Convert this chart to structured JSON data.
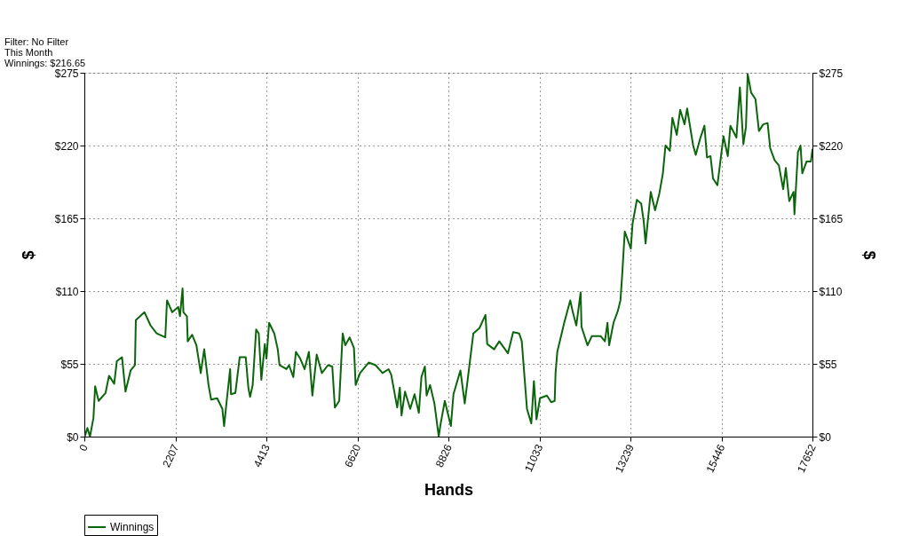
{
  "chart_data": {
    "type": "line",
    "xlabel": "Hands",
    "ylabel": "$",
    "y2label": "$",
    "annotations": [
      "Filter: No Filter",
      "This Month",
      "Winnings: $216.65"
    ],
    "x": [
      10,
      73,
      136,
      220,
      262,
      346,
      514,
      598,
      724,
      787,
      913,
      997,
      1122,
      1227,
      1248,
      1458,
      1605,
      1752,
      1962,
      2004,
      2130,
      2276,
      2318,
      2381,
      2402,
      2486,
      2507,
      2612,
      2717,
      2822,
      2906,
      3011,
      3074,
      3220,
      3346,
      3388,
      3451,
      3535,
      3556,
      3661,
      3766,
      3913,
      3976,
      4018,
      4081,
      4165,
      4228,
      4291,
      4375,
      4416,
      4479,
      4605,
      4689,
      4731,
      4899,
      4962,
      5066,
      5129,
      5234,
      5339,
      5444,
      5528,
      5633,
      5759,
      5906,
      6011,
      6074,
      6179,
      6263,
      6326,
      6431,
      6536,
      6578,
      6683,
      6893,
      7061,
      7229,
      7375,
      7438,
      7585,
      7648,
      7690,
      7774,
      7900,
      8005,
      8110,
      8172,
      8256,
      8298,
      8382,
      8487,
      8592,
      8634,
      8739,
      8886,
      8949,
      9117,
      9222,
      9305,
      9431,
      9578,
      9725,
      9767,
      9934,
      10060,
      10270,
      10396,
      10542,
      10605,
      10731,
      10836,
      10899,
      10962,
      11046,
      11214,
      11319,
      11403,
      11424,
      11466,
      11634,
      11780,
      11843,
      11927,
      12032,
      12053,
      12200,
      12305,
      12515,
      12620,
      12682,
      12724,
      12829,
      12934,
      12997,
      13039,
      13102,
      13249,
      13291,
      13396,
      13501,
      13564,
      13606,
      13732,
      13837,
      13942,
      14026,
      14089,
      14194,
      14257,
      14362,
      14446,
      14551,
      14614,
      14760,
      14823,
      14928,
      15033,
      15096,
      15180,
      15243,
      15348,
      15495,
      15600,
      15663,
      15809,
      15893,
      15977,
      16040,
      16082,
      16166,
      16271,
      16355,
      16460,
      16565,
      16628,
      16733,
      16838,
      16943,
      17006,
      17090,
      17195,
      17216,
      17300,
      17363,
      17405,
      17510,
      17615,
      17652
    ],
    "series": [
      {
        "name": "Winnings",
        "color": "#0b660b",
        "values": [
          0,
          6.5,
          0,
          14,
          38,
          27,
          33,
          46,
          40,
          57,
          60,
          34,
          50,
          54,
          88,
          94,
          84,
          78,
          75,
          103,
          94,
          98,
          91,
          112,
          94,
          91,
          72,
          77,
          69,
          48,
          66,
          39,
          28,
          29,
          21,
          8,
          27,
          51,
          32,
          33,
          60,
          60,
          37,
          30,
          39,
          81,
          78,
          43,
          70,
          59,
          86,
          78,
          66,
          54,
          51,
          54,
          45,
          64,
          59,
          51,
          64,
          31,
          62,
          48,
          54,
          53,
          22,
          27,
          78,
          69,
          75,
          67,
          39,
          48,
          56,
          54,
          48,
          51,
          47,
          22,
          37,
          16,
          34,
          21,
          32,
          18,
          45,
          53,
          31,
          39,
          25,
          0,
          9,
          27,
          8,
          32,
          50,
          25,
          46,
          78,
          82,
          92,
          70,
          66,
          72,
          63,
          79,
          78,
          72,
          21,
          10,
          42,
          13,
          29,
          31,
          26,
          27,
          48,
          64,
          86,
          103,
          94,
          84,
          109,
          83,
          69,
          76,
          76,
          72,
          86,
          69,
          86,
          95,
          103,
          122,
          155,
          142,
          161,
          179,
          176,
          162,
          146,
          185,
          171,
          184,
          199,
          220,
          216,
          241,
          228,
          247,
          236,
          248,
          220,
          213,
          225,
          235,
          211,
          212,
          195,
          190,
          227,
          212,
          235,
          226,
          264,
          221,
          234,
          274,
          260,
          255,
          231,
          236,
          237,
          218,
          209,
          205,
          187,
          203,
          178,
          185,
          168,
          215,
          220,
          199,
          208,
          208,
          217
        ]
      }
    ],
    "xlim": [
      0,
      17652
    ],
    "xticks": [
      0,
      2207,
      4413,
      6620,
      8826,
      11033,
      13239,
      15446,
      17652
    ],
    "ylim": [
      0,
      275
    ],
    "yticks": [
      {
        "value": 0,
        "label": "$0"
      },
      {
        "value": 55,
        "label": "$55"
      },
      {
        "value": 110,
        "label": "$110"
      },
      {
        "value": 165,
        "label": "$165"
      },
      {
        "value": 220,
        "label": "$220"
      },
      {
        "value": 275,
        "label": "$275"
      }
    ],
    "y2lim": [
      0,
      275
    ],
    "y2ticks": [
      {
        "value": 0,
        "label": "$0"
      },
      {
        "value": 55,
        "label": "$55"
      },
      {
        "value": 110,
        "label": "$110"
      },
      {
        "value": 165,
        "label": "$165"
      },
      {
        "value": 220,
        "label": "$220"
      },
      {
        "value": 275,
        "label": "$275"
      }
    ],
    "grid": true,
    "legend": "bottom left",
    "marker": "none",
    "line_style": "solid"
  }
}
